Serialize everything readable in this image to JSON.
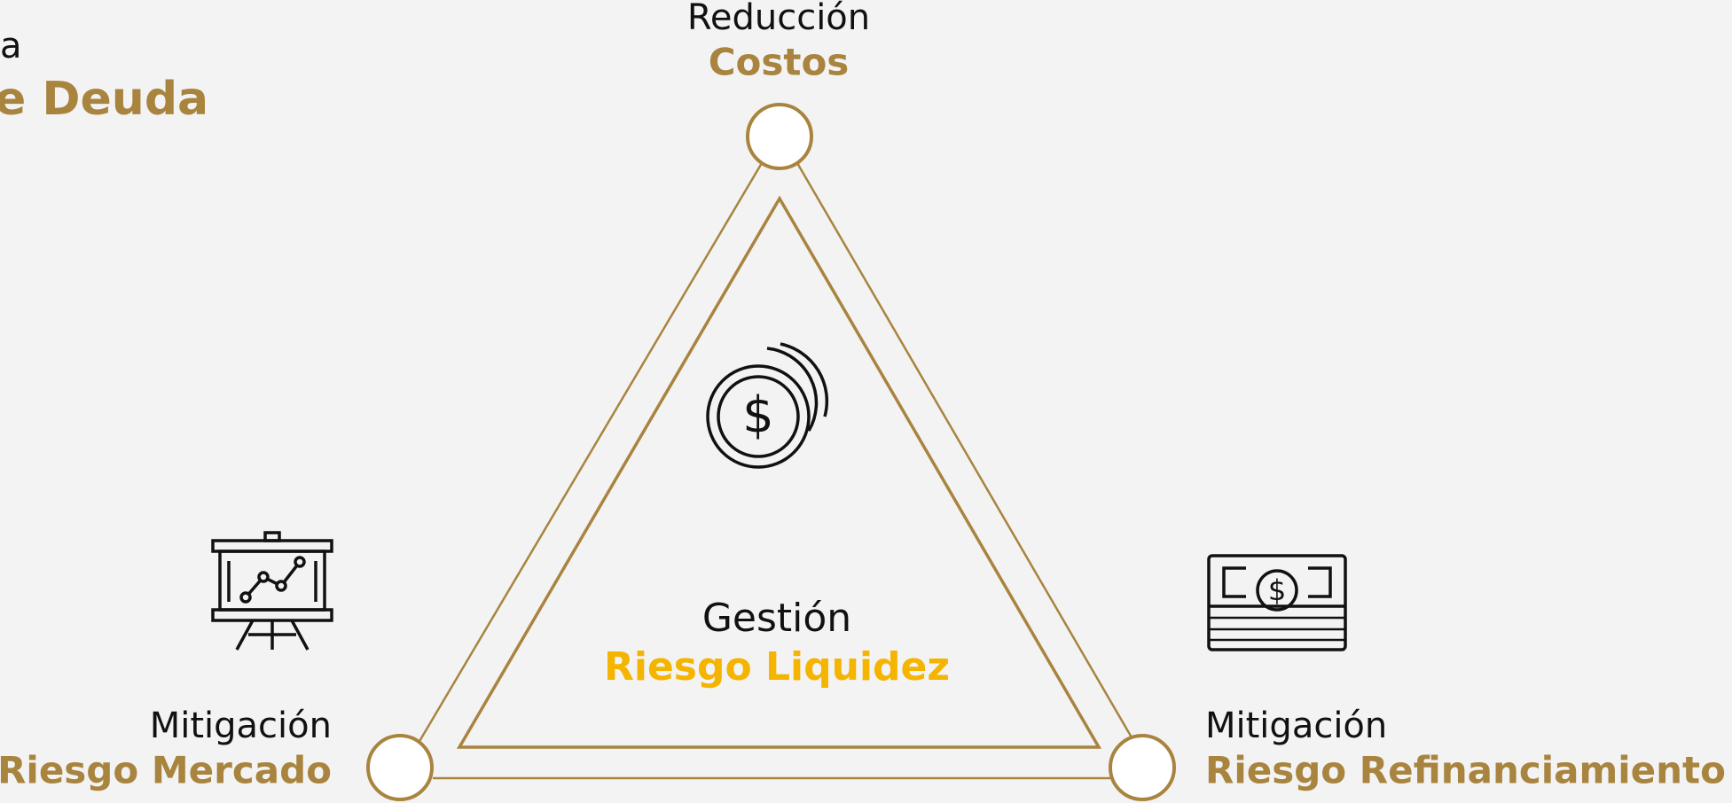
{
  "header": {
    "line1": "a",
    "line2": "e Deuda"
  },
  "nodes": [
    {
      "label": "Reducción",
      "title": "Costos"
    },
    {
      "label": "Mitigación",
      "title": "Riesgo Mercado"
    },
    {
      "label": "Mitigación",
      "title": "Riesgo Refinanciamiento"
    }
  ],
  "center": {
    "label": "Gestión",
    "title": "Riesgo Liquidez"
  }
}
